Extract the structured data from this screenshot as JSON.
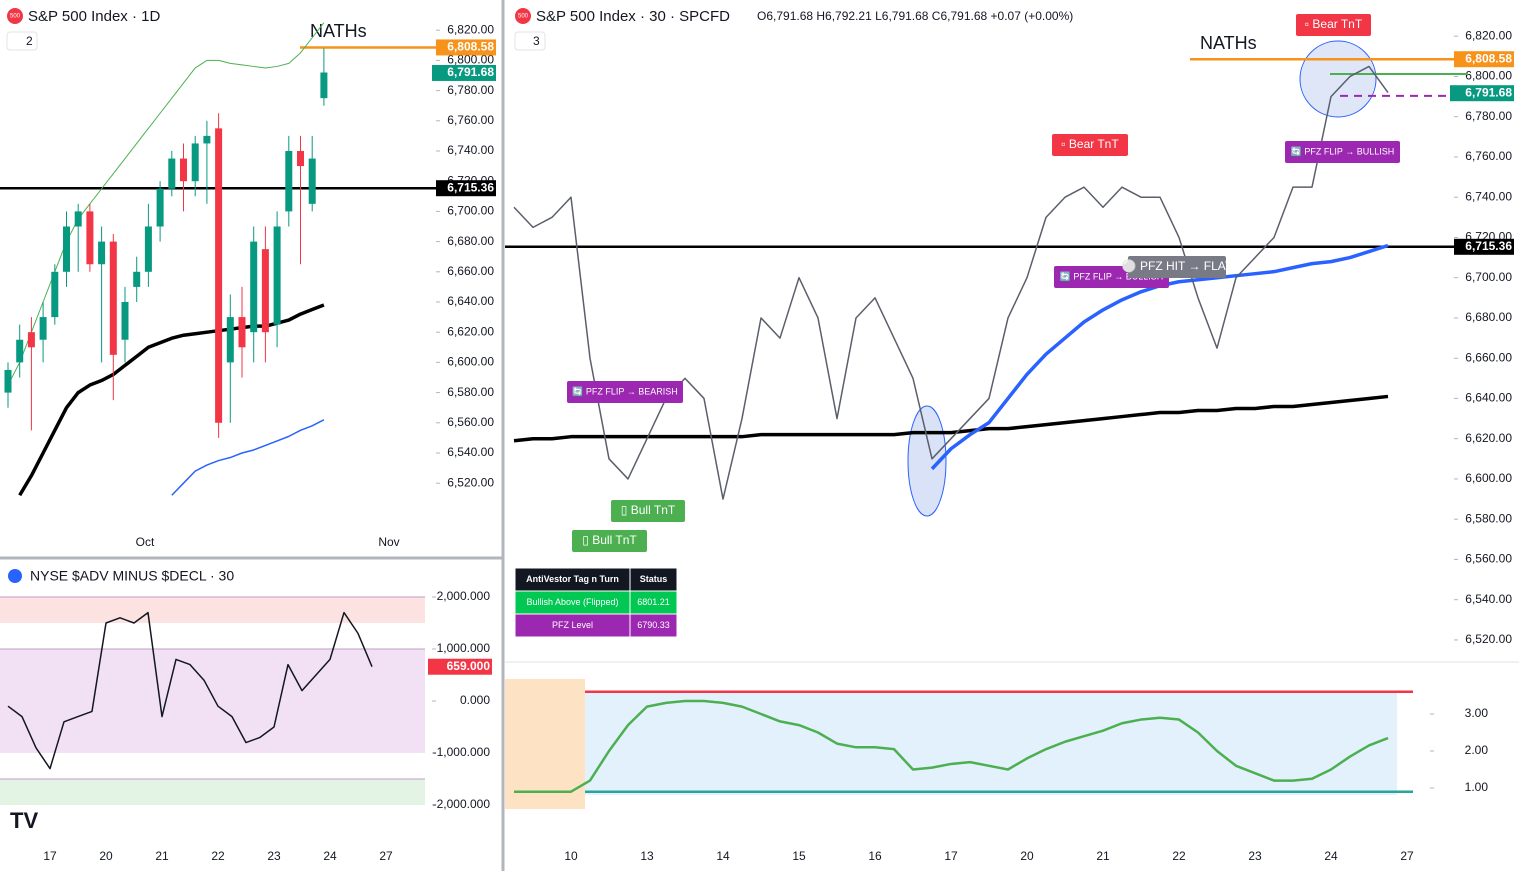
{
  "ui": {
    "icon_text": "500"
  },
  "chart_data": [
    {
      "type": "candlestick",
      "title": "S&P 500 Index · 1D",
      "badge": "2",
      "up_color": "#089981",
      "down_color": "#f23645",
      "open": [
        6580,
        6600,
        6620,
        6615,
        6630,
        6660,
        6690,
        6700,
        6665,
        6680,
        6615,
        6650,
        6660,
        6690,
        6715,
        6735,
        6720,
        6745,
        6755,
        6600,
        6630,
        6620,
        6675,
        6625,
        6700,
        6740,
        6705,
        6775
      ],
      "high": [
        6600,
        6625,
        6630,
        6640,
        6665,
        6700,
        6705,
        6705,
        6690,
        6685,
        6650,
        6670,
        6705,
        6720,
        6740,
        6745,
        6750,
        6760,
        6765,
        6645,
        6650,
        6690,
        6690,
        6700,
        6750,
        6750,
        6750,
        6808
      ],
      "low": [
        6570,
        6590,
        6555,
        6600,
        6625,
        6650,
        6660,
        6660,
        6600,
        6575,
        6600,
        6640,
        6650,
        6680,
        6710,
        6700,
        6710,
        6705,
        6550,
        6560,
        6590,
        6600,
        6600,
        6610,
        6690,
        6665,
        6700,
        6770
      ],
      "close": [
        6595,
        6615,
        6610,
        6630,
        6660,
        6690,
        6700,
        6665,
        6680,
        6605,
        6640,
        6660,
        6690,
        6715,
        6735,
        6720,
        6745,
        6750,
        6560,
        6630,
        6610,
        6680,
        6620,
        6690,
        6740,
        6730,
        6735,
        6792
      ],
      "lines": [
        {
          "color": "#000000",
          "width": 3.5,
          "values": [
            null,
            6512,
            6525,
            6540,
            6555,
            6570,
            6580,
            6585,
            6588,
            6592,
            6598,
            6604,
            6610,
            6613,
            6616,
            6618,
            6619,
            6620,
            6621,
            6622,
            6623,
            6624,
            6624,
            6626,
            6628,
            6632,
            6635,
            6638
          ]
        },
        {
          "color": "#2962ff",
          "width": 1.5,
          "values": [
            null,
            null,
            null,
            null,
            null,
            null,
            null,
            null,
            null,
            null,
            null,
            null,
            null,
            null,
            6512,
            6520,
            6528,
            6532,
            6535,
            6537,
            6540,
            6542,
            6545,
            6548,
            6551,
            6555,
            6558,
            6562
          ]
        },
        {
          "color": "#4caf50",
          "width": 1,
          "values": [
            6585,
            6600,
            6620,
            6640,
            6660,
            6680,
            6695,
            6705,
            6715,
            6725,
            6735,
            6745,
            6755,
            6765,
            6775,
            6785,
            6795,
            6800,
            6800,
            6798,
            6797,
            6796,
            6795,
            6796,
            6798,
            6805,
            6815,
            6825
          ]
        }
      ],
      "levels": [
        {
          "value": 6808.58,
          "label": "6,808.58",
          "color": "#f7931a",
          "note": "NATHs"
        },
        {
          "value": 6715.36,
          "label": "6,715.36",
          "color": "#000000"
        }
      ],
      "last": {
        "value": 6791.68,
        "label": "6,791.68",
        "color": "#089981"
      },
      "time_labels": [
        "Oct",
        "Nov"
      ],
      "ylim": [
        6489,
        6840
      ],
      "yticks": [
        {
          "value": 6520,
          "label": "6,520.00"
        },
        {
          "value": 6540,
          "label": "6,540.00"
        },
        {
          "value": 6560,
          "label": "6,560.00"
        },
        {
          "value": 6580,
          "label": "6,580.00"
        },
        {
          "value": 6600,
          "label": "6,600.00"
        },
        {
          "value": 6620,
          "label": "6,620.00"
        },
        {
          "value": 6640,
          "label": "6,640.00"
        },
        {
          "value": 6660,
          "label": "6,660.00"
        },
        {
          "value": 6680,
          "label": "6,680.00"
        },
        {
          "value": 6700,
          "label": "6,700.00"
        },
        {
          "value": 6720,
          "label": "6,720.00"
        },
        {
          "value": 6740,
          "label": "6,740.00"
        },
        {
          "value": 6760,
          "label": "6,760.00"
        },
        {
          "value": 6780,
          "label": "6,780.00"
        },
        {
          "value": 6800,
          "label": "6,800.00"
        },
        {
          "value": 6820,
          "label": "6,820.00"
        }
      ]
    },
    {
      "type": "line",
      "title": "S&P 500 Index · 30 · SPCFD",
      "badge": "3",
      "ohlc_text": "O6,791.68 H6,792.21 L6,791.68 C6,791.68 +0.07 (+0.00%)",
      "color": "#5a5f6b",
      "categories": [
        null,
        null,
        null,
        "10",
        null,
        null,
        null,
        "13",
        null,
        null,
        null,
        "14",
        null,
        null,
        null,
        "15",
        null,
        null,
        null,
        "16",
        null,
        null,
        null,
        "17",
        null,
        null,
        null,
        "20",
        null,
        null,
        null,
        "21",
        null,
        null,
        null,
        "22",
        null,
        null,
        null,
        "23",
        null,
        null,
        null,
        "24",
        null,
        null,
        null,
        "27"
      ],
      "values": [
        6735,
        6725,
        6730,
        6740,
        6660,
        6610,
        6600,
        6620,
        6640,
        6650,
        6640,
        6590,
        6630,
        6680,
        6670,
        6700,
        6680,
        6630,
        6680,
        6690,
        6670,
        6650,
        6610,
        6620,
        6630,
        6640,
        6680,
        6700,
        6730,
        6740,
        6745,
        6735,
        6745,
        6740,
        6740,
        6720,
        6690,
        6665,
        6700,
        6710,
        6720,
        6745,
        6745,
        6790,
        6800,
        6805,
        6792,
        null
      ],
      "lines": [
        {
          "color": "#000000",
          "width": 3.5,
          "values": [
            6619,
            6620,
            6620,
            6621,
            6621,
            6621,
            6621,
            6621,
            6621,
            6621,
            6621,
            6621,
            6621,
            6622,
            6622,
            6622,
            6622,
            6622,
            6622,
            6622,
            6622,
            6623,
            6623,
            6623,
            6624,
            6625,
            6625,
            6626,
            6627,
            6628,
            6629,
            6630,
            6631,
            6632,
            6633,
            6633,
            6634,
            6634,
            6635,
            6635,
            6636,
            6636,
            6637,
            6638,
            6639,
            6640,
            6641,
            null
          ]
        },
        {
          "color": "#2962ff",
          "width": 3.5,
          "values": [
            null,
            null,
            null,
            null,
            null,
            null,
            null,
            null,
            null,
            null,
            null,
            null,
            null,
            null,
            null,
            null,
            null,
            null,
            null,
            null,
            null,
            null,
            6605,
            6615,
            6622,
            6628,
            6640,
            6652,
            6662,
            6670,
            6678,
            6684,
            6689,
            6693,
            6696,
            6698,
            6699,
            6700,
            6701,
            6702,
            6703,
            6705,
            6707,
            6708,
            6710,
            6713,
            6716,
            null
          ]
        }
      ],
      "levels": [
        {
          "value": 6808.58,
          "label": "6,808.58",
          "color": "#f7931a",
          "note": "NATHs"
        },
        {
          "value": 6715.36,
          "label": "6,715.36",
          "color": "#000000"
        },
        {
          "value": 6801.21,
          "color": "#4caf50"
        },
        {
          "value": 6790.33,
          "color": "#9c27b0"
        }
      ],
      "last": {
        "value": 6791.68,
        "label": "6,791.68",
        "color": "#089981"
      },
      "annotations": [
        {
          "text": "▫ Bear TnT",
          "color": "#f23645"
        },
        {
          "text": "▫ Bear TnT",
          "color": "#f23645"
        },
        {
          "text": "🔄 PFZ FLIP → BEARISH",
          "color": "#9c27b0"
        },
        {
          "text": "🔄 PFZ FLIP → BULLISH",
          "color": "#9c27b0"
        },
        {
          "text": "🔄 PFZ FLIP → BULLISH",
          "color": "#9c27b0"
        },
        {
          "text": "⚪ PFZ HIT → FLAT",
          "color": "#787b86"
        },
        {
          "text": "▯ Bull TnT",
          "color": "#4caf50"
        },
        {
          "text": "▯ Bull TnT",
          "color": "#4caf50"
        }
      ],
      "table": {
        "header": [
          "AntiVestor Tag n Turn",
          "Status"
        ],
        "rows": [
          [
            "Bullish Above (Flipped)",
            "6801.21"
          ],
          [
            "PFZ Level",
            "6790.33"
          ]
        ]
      },
      "ylim": [
        6515,
        6838
      ],
      "yticks": [
        {
          "value": 6520,
          "label": "6,520.00"
        },
        {
          "value": 6540,
          "label": "6,540.00"
        },
        {
          "value": 6560,
          "label": "6,560.00"
        },
        {
          "value": 6580,
          "label": "6,580.00"
        },
        {
          "value": 6600,
          "label": "6,600.00"
        },
        {
          "value": 6620,
          "label": "6,620.00"
        },
        {
          "value": 6640,
          "label": "6,640.00"
        },
        {
          "value": 6660,
          "label": "6,660.00"
        },
        {
          "value": 6680,
          "label": "6,680.00"
        },
        {
          "value": 6700,
          "label": "6,700.00"
        },
        {
          "value": 6720,
          "label": "6,720.00"
        },
        {
          "value": 6740,
          "label": "6,740.00"
        },
        {
          "value": 6760,
          "label": "6,760.00"
        },
        {
          "value": 6780,
          "label": "6,780.00"
        },
        {
          "value": 6800,
          "label": "6,800.00"
        },
        {
          "value": 6820,
          "label": "6,820.00"
        }
      ]
    },
    {
      "type": "line",
      "color": "#4caf50",
      "values": [
        0.9,
        0.9,
        0.9,
        0.9,
        1.2,
        2.0,
        2.7,
        3.2,
        3.3,
        3.35,
        3.35,
        3.3,
        3.2,
        3.0,
        2.8,
        2.7,
        2.5,
        2.2,
        2.1,
        2.1,
        2.05,
        1.5,
        1.55,
        1.65,
        1.7,
        1.6,
        1.5,
        1.8,
        2.05,
        2.25,
        2.4,
        2.55,
        2.75,
        2.85,
        2.9,
        2.85,
        2.5,
        2.0,
        1.6,
        1.4,
        1.2,
        1.2,
        1.25,
        1.5,
        1.85,
        2.15,
        2.35,
        null
      ],
      "levels": [
        {
          "value": 3.6,
          "color": "#f23645"
        },
        {
          "value": 0.9,
          "color": "#26a69a"
        }
      ],
      "ylim": [
        0.27,
        4.73
      ],
      "yticks": [
        {
          "value": 1,
          "label": "1.00"
        },
        {
          "value": 2,
          "label": "2.00"
        },
        {
          "value": 3,
          "label": "3.00"
        }
      ]
    },
    {
      "type": "line",
      "title": "NYSE $ADV MINUS $DECL · 30",
      "color": "#131722",
      "categories": [
        null,
        null,
        null,
        "17",
        null,
        null,
        null,
        "20",
        null,
        null,
        null,
        "21",
        null,
        null,
        null,
        "22",
        null,
        null,
        null,
        "23",
        null,
        null,
        null,
        "24",
        null,
        null,
        null,
        "27"
      ],
      "values": [
        -100,
        -300,
        -900,
        -1300,
        -400,
        -300,
        -200,
        1500,
        1600,
        1500,
        1700,
        -300,
        800,
        700,
        400,
        -100,
        -300,
        -800,
        -700,
        -500,
        700,
        200,
        500,
        800,
        1700,
        1300,
        659,
        null
      ],
      "bands": [
        {
          "from": 1500,
          "to": 2000,
          "color": "#fde2e2"
        },
        {
          "from": -1000,
          "to": 1000,
          "color": "#f2e1f4"
        },
        {
          "from": -2000,
          "to": -1500,
          "color": "#e3f3e4"
        }
      ],
      "last": {
        "value": 659,
        "label": "659.000",
        "color": "#f23645"
      },
      "ylim": [
        -2673,
        2269
      ],
      "yticks": [
        {
          "value": -2000,
          "label": "-2,000.000"
        },
        {
          "value": -1000,
          "label": "-1,000.000"
        },
        {
          "value": 0,
          "label": "0.000"
        },
        {
          "value": 1000,
          "label": "1,000.000"
        },
        {
          "value": 2000,
          "label": "2,000.000"
        }
      ]
    }
  ]
}
